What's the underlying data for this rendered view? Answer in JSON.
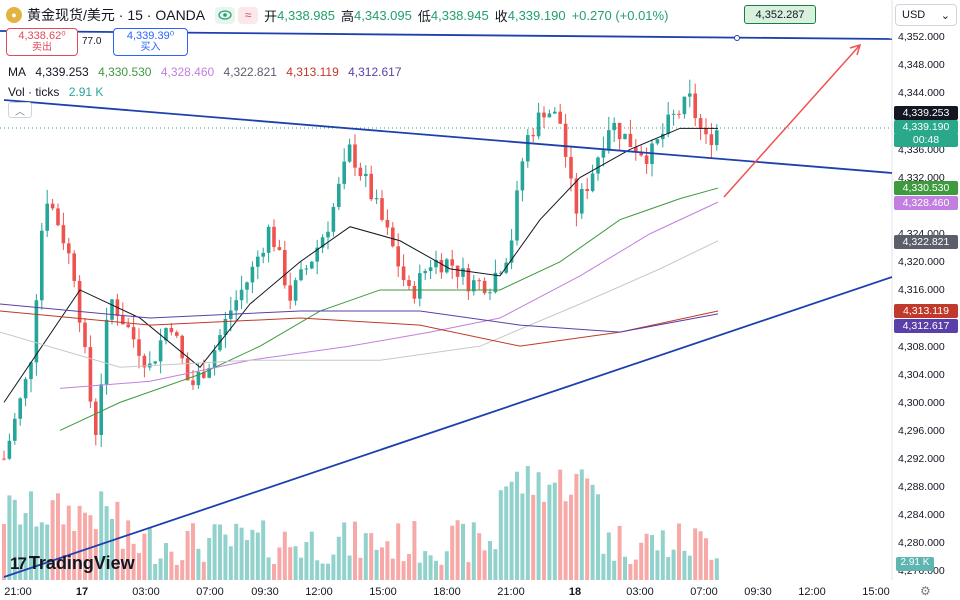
{
  "header": {
    "symbol_title": "黄金现货/美元 · 15 · OANDA",
    "open_label": "开",
    "open_value": "4,338.985",
    "high_label": "高",
    "high_value": "4,343.095",
    "low_label": "低",
    "low_value": "4,338.945",
    "close_label": "收",
    "close_value": "4,339.190",
    "change": "+0.270 (+0.01%)"
  },
  "trade": {
    "sell_price": "4,338.62⁰",
    "sell_label": "卖出",
    "spread": "77.0",
    "buy_price": "4,339.39⁰",
    "buy_label": "买入"
  },
  "indicators": {
    "ma_label": "MA",
    "ma_values": [
      "4,339.253",
      "4,330.530",
      "4,328.460",
      "4,322.821",
      "4,313.119",
      "4,312.617"
    ],
    "ma_colors": [
      "#131722",
      "#3d9a3d",
      "#c27fe0",
      "#9e9e9e",
      "#c0392b",
      "#5b3fa8"
    ],
    "vol_label": "Vol · ticks",
    "vol_value": "2.91 K"
  },
  "currency_select": "USD",
  "y_axis_ticks": [
    "4,352.000",
    "4,348.000",
    "4,344.000",
    "4,336.000",
    "4,332.000",
    "4,324.000",
    "4,320.000",
    "4,316.000",
    "4,308.000",
    "4,304.000",
    "4,300.000",
    "4,296.000",
    "4,292.000",
    "4,288.000",
    "4,284.000",
    "4,280.000",
    "4,276.000"
  ],
  "x_axis_ticks": [
    "21:00",
    "17",
    "03:00",
    "07:00",
    "09:30",
    "12:00",
    "15:00",
    "18:00",
    "21:00",
    "18",
    "03:00",
    "07:00",
    "09:30",
    "12:00",
    "15:00"
  ],
  "price_badges": [
    {
      "text": "4,339.253",
      "color": "#131722"
    },
    {
      "text": "4,339.190",
      "color": "#2aa88a"
    },
    {
      "text": "00:48",
      "color": "#2aa88a"
    },
    {
      "text": "4,330.530",
      "color": "#3d9a3d"
    },
    {
      "text": "4,328.460",
      "color": "#c27fe0"
    },
    {
      "text": "4,322.821",
      "color": "#5c5f6b"
    },
    {
      "text": "4,313.119",
      "color": "#c0392b"
    },
    {
      "text": "4,312.617",
      "color": "#5b3fa8"
    }
  ],
  "alert_price": "4,352.287",
  "volume_badge": "2.91 K",
  "brand": "TradingView",
  "colors": {
    "up": "#26a69a",
    "down": "#ef5350",
    "trendline": "#1e40af",
    "arrow": "#ef5350"
  }
}
